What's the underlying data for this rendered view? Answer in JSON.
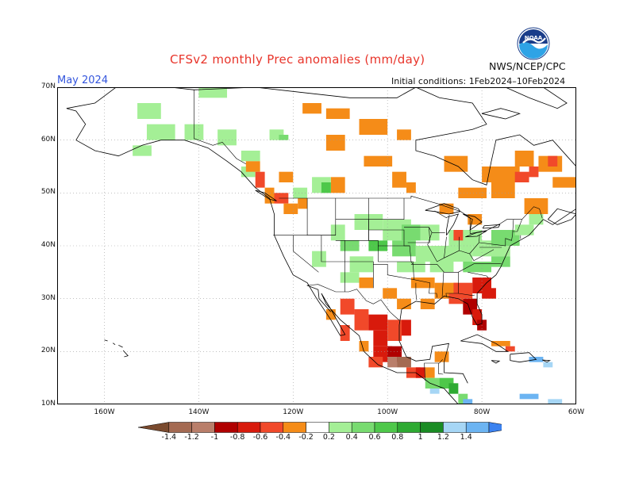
{
  "header": {
    "title": "CFSv2 monthly Prec anomalies (mm/day)",
    "month": "May 2024",
    "init": "Initial conditions: 1Feb2024–10Feb2024",
    "agency": "NWS/NCEP/CPC",
    "logo_text": "NOAA"
  },
  "map": {
    "lat_labels": [
      "70N",
      "60N",
      "50N",
      "40N",
      "30N",
      "20N",
      "10N"
    ],
    "lon_labels": [
      "160W",
      "140W",
      "120W",
      "100W",
      "80W",
      "60W"
    ],
    "lon_range": [
      -170,
      -60
    ],
    "lat_range": [
      10,
      70
    ]
  },
  "legend": {
    "labels": [
      "-1.4",
      "-1.2",
      "-1",
      "-0.8",
      "-0.6",
      "-0.4",
      "-0.2",
      "0.2",
      "0.4",
      "0.6",
      "0.8",
      "1",
      "1.2",
      "1.4"
    ],
    "colors": [
      "#7a4a2e",
      "#a46a52",
      "#b97e6a",
      "#b00000",
      "#d81a0c",
      "#f1492a",
      "#f58c18",
      "#ffffff",
      "#a4ef96",
      "#78db70",
      "#4ec84a",
      "#2eaa32",
      "#1a8c24",
      "#a6d6f5",
      "#6cb4f2",
      "#3b82f0"
    ]
  },
  "colors": {
    "title": "#e8342a",
    "month": "#3355dd",
    "coast": "#000000",
    "grid": "#9a9a9a"
  }
}
